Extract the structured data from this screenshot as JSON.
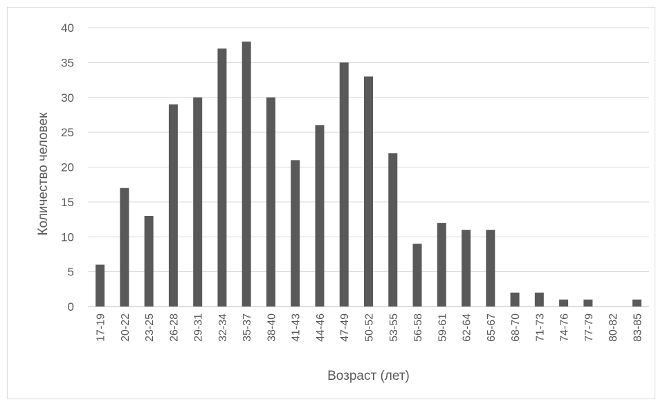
{
  "chart_data": {
    "type": "bar",
    "categories": [
      "17-19",
      "20-22",
      "23-25",
      "26-28",
      "29-31",
      "32-34",
      "35-37",
      "38-40",
      "41-43",
      "44-46",
      "47-49",
      "50-52",
      "53-55",
      "56-58",
      "59-61",
      "62-64",
      "65-67",
      "68-70",
      "71-73",
      "74-76",
      "77-79",
      "80-82",
      "83-85"
    ],
    "values": [
      6,
      17,
      13,
      29,
      30,
      37,
      38,
      30,
      21,
      26,
      35,
      33,
      22,
      9,
      12,
      11,
      11,
      2,
      2,
      1,
      1,
      0,
      1
    ],
    "title": "",
    "xlabel": "Возраст (лет)",
    "ylabel": "Количество человек",
    "ylim": [
      0,
      40
    ],
    "yticks": [
      0,
      5,
      10,
      15,
      20,
      25,
      30,
      35,
      40
    ],
    "grid": true,
    "legend": "none",
    "colors": {
      "bar": "#595959",
      "grid": "#d9d9d9",
      "axis": "#bfbfbf",
      "text": "#595959"
    }
  }
}
